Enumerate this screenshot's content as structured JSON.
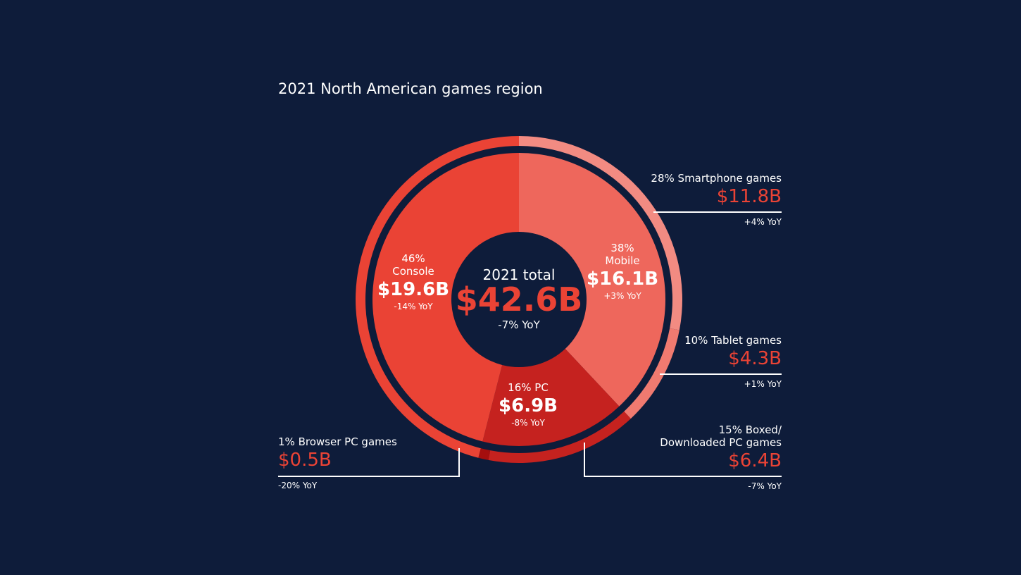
{
  "chart_data": {
    "type": "donut",
    "title": "2021 North American games region",
    "center": {
      "label": "2021 total",
      "value": 42.6,
      "value_label": "$42.6B",
      "change": "-7% YoY"
    },
    "rings": [
      {
        "categories": [
          "Mobile",
          "PC",
          "Console"
        ],
        "values": [
          16.1,
          6.9,
          19.6
        ],
        "value_labels": [
          "$16.1B",
          "$6.9B",
          "$19.6B"
        ],
        "percents": [
          38,
          16,
          46
        ],
        "percent_labels": [
          "38%",
          "16%",
          "46%"
        ],
        "changes": [
          "+3% YoY",
          "-8% YoY",
          "-14% YoY"
        ],
        "colors": [
          "#ee675c",
          "#c5221f",
          "#ea4335"
        ]
      },
      {
        "categories": [
          "Smartphone games",
          "Tablet games",
          "Boxed/ Downloaded PC games",
          "Browser PC games",
          null
        ],
        "values": [
          11.8,
          4.3,
          6.4,
          0.5,
          19.6
        ],
        "value_labels": [
          "$11.8B",
          "$4.3B",
          "$6.4B",
          "$0.5B",
          null
        ],
        "percents": [
          28,
          10,
          15,
          1,
          46
        ],
        "percent_labels": [
          "28%",
          "10%",
          "15%",
          "1%",
          null
        ],
        "changes": [
          "+4% YoY",
          "+1% YoY",
          "-7% YoY",
          "-20% YoY",
          null
        ],
        "colors": [
          "#f28b82",
          "#f07a70",
          "#c5221f",
          "#a50e0e",
          "#ea4335"
        ]
      }
    ]
  }
}
